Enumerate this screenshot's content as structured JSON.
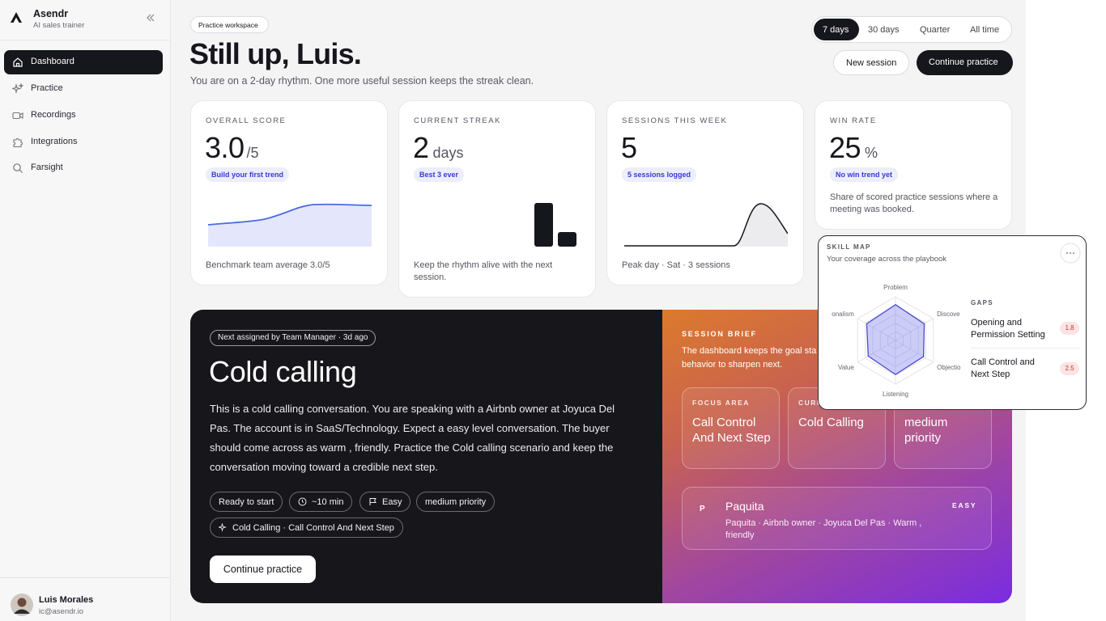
{
  "sidebar": {
    "brand": "Asendr",
    "tagline": "AI sales trainer",
    "nav": [
      "Dashboard",
      "Practice",
      "Recordings",
      "Integrations",
      "Farsight"
    ],
    "user": {
      "name": "Luis Morales",
      "email": "ic@asendr.io"
    }
  },
  "header": {
    "badge": "Practice workspace",
    "title": "Still up, Luis.",
    "subtitle": "You are on a 2-day rhythm. One more useful session keeps the streak clean.",
    "ranges": [
      "7 days",
      "30 days",
      "Quarter",
      "All time"
    ],
    "actions": [
      "New session",
      "Continue practice"
    ]
  },
  "stats": [
    {
      "label": "OVERALL SCORE",
      "value": "3.0",
      "unit": "/5",
      "badge": "Build your first trend",
      "note": "Benchmark team average 3.0/5"
    },
    {
      "label": "CURRENT STREAK",
      "value": 2,
      "unit": "days",
      "badge": "Best 3 ever",
      "note": "Keep the rhythm alive with the next session."
    },
    {
      "label": "SESSIONS THIS WEEK",
      "value": 5,
      "badge": "5 sessions logged",
      "note": "Peak day · Sat · 3 sessions"
    },
    {
      "label": "WIN RATE",
      "value": 25,
      "unit": "%",
      "badge": "No win trend yet",
      "note": "Share of scored practice sessions where a meeting was booked."
    }
  ],
  "assignment": {
    "chip": "Next assigned by Team Manager · 3d ago",
    "title": "Cold calling",
    "description": "This is a cold calling conversation. You are speaking with a Airbnb owner at Joyuca Del Pas. The account is in SaaS/Technology. Expect a easy level conversation. The buyer should come across as warm , friendly. Practice the Cold calling scenario and keep the conversation moving toward a credible next step.",
    "tags": [
      "Ready to start",
      "~10 min",
      "Easy",
      "medium priority",
      "Cold Calling · Call Control And Next Step"
    ],
    "cta": "Continue practice"
  },
  "brief": {
    "label": "SESSION BRIEF",
    "text_lines": [
      "The dashboard keeps the goal sta",
      "behavior to sharpen next."
    ],
    "cards": [
      {
        "label": "FOCUS AREA",
        "value": "Call Control And Next Step"
      },
      {
        "label": "CURR",
        "value": "Cold Calling"
      },
      {
        "value": "medium priority"
      }
    ],
    "persona": {
      "initial": "P",
      "name": "Paquita",
      "details": "Paquita · Airbnb owner · Joyuca Del Pas · Warm , friendly",
      "level": "EASY"
    }
  },
  "skill_map": {
    "title": "SKILL MAP",
    "subtitle": "Your coverage across the playbook",
    "axes": [
      "Problem",
      "Discove",
      "Objectio",
      "Listening",
      "Value",
      "onalism"
    ],
    "values": [
      4.1,
      3.8,
      3.7,
      3.9,
      3.6,
      3.8
    ],
    "rlim": [
      0,
      5
    ],
    "rings": [
      1,
      2,
      3,
      4,
      5
    ],
    "gaps_title": "GAPS",
    "gaps": [
      {
        "name": "Opening and Permission Setting",
        "score": 1.8
      },
      {
        "name": "Call Control and Next Step",
        "score": 2.5
      }
    ]
  }
}
